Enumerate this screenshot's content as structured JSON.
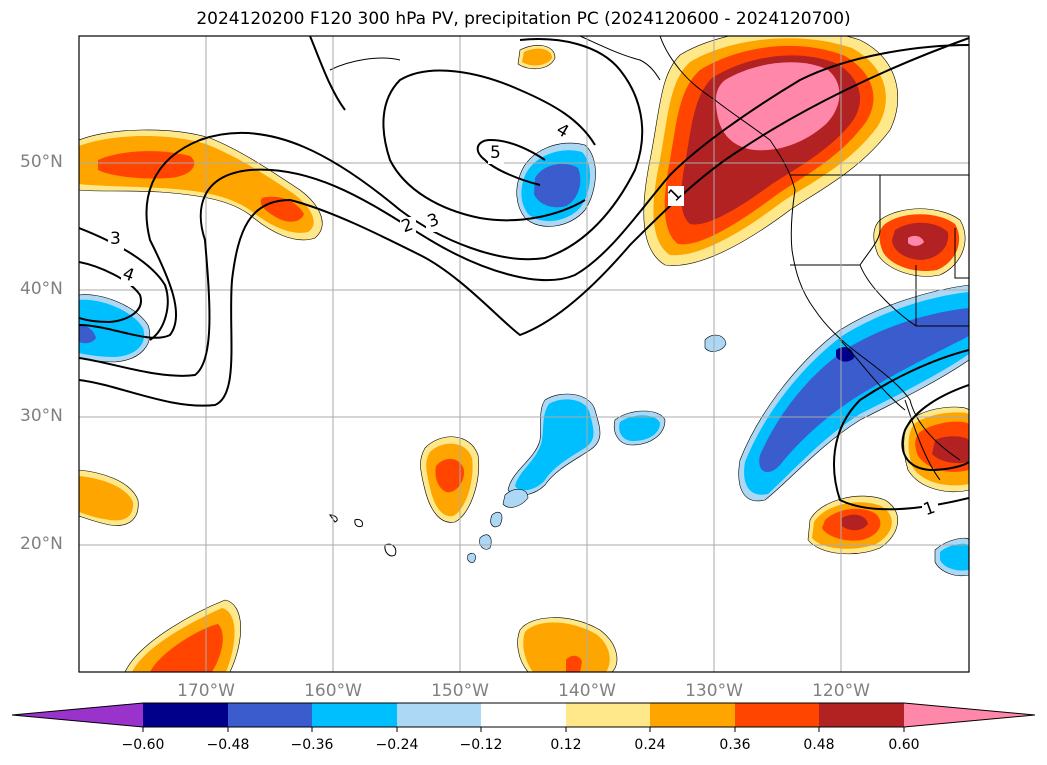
{
  "title": "2024120200 F120 300 hPa PV, precipitation PC (2024120600 - 2024120700)",
  "lat_labels": [
    "50°N",
    "40°N",
    "30°N",
    "20°N"
  ],
  "lon_labels": [
    "170°W",
    "160°W",
    "150°W",
    "140°W",
    "130°W",
    "120°W"
  ],
  "contour_labels": [
    "5",
    "4",
    "3",
    "2",
    "3",
    "4",
    "1",
    "1"
  ],
  "colorbar": {
    "tick_labels": [
      "−0.60",
      "−0.48",
      "−0.36",
      "−0.24",
      "−0.12",
      "0.12",
      "0.24",
      "0.36",
      "0.48",
      "0.60"
    ],
    "colors": [
      "#9933cc",
      "#00008b",
      "#3a5ccc",
      "#00bfff",
      "#add8f5",
      "#ffffff",
      "#ffe88a",
      "#ffa500",
      "#ff4500",
      "#b22222",
      "#ff88aa"
    ]
  },
  "colors": {
    "neg_strong": "#3a5ccc",
    "neg_mid": "#00bfff",
    "neg_light": "#add8f5",
    "neg_darkest": "#00008b",
    "pos_light": "#ffe88a",
    "pos_mid": "#ffa500",
    "pos_orange_red": "#ff4500",
    "pos_dark_red": "#b22222",
    "pos_pink": "#ff88aa"
  }
}
